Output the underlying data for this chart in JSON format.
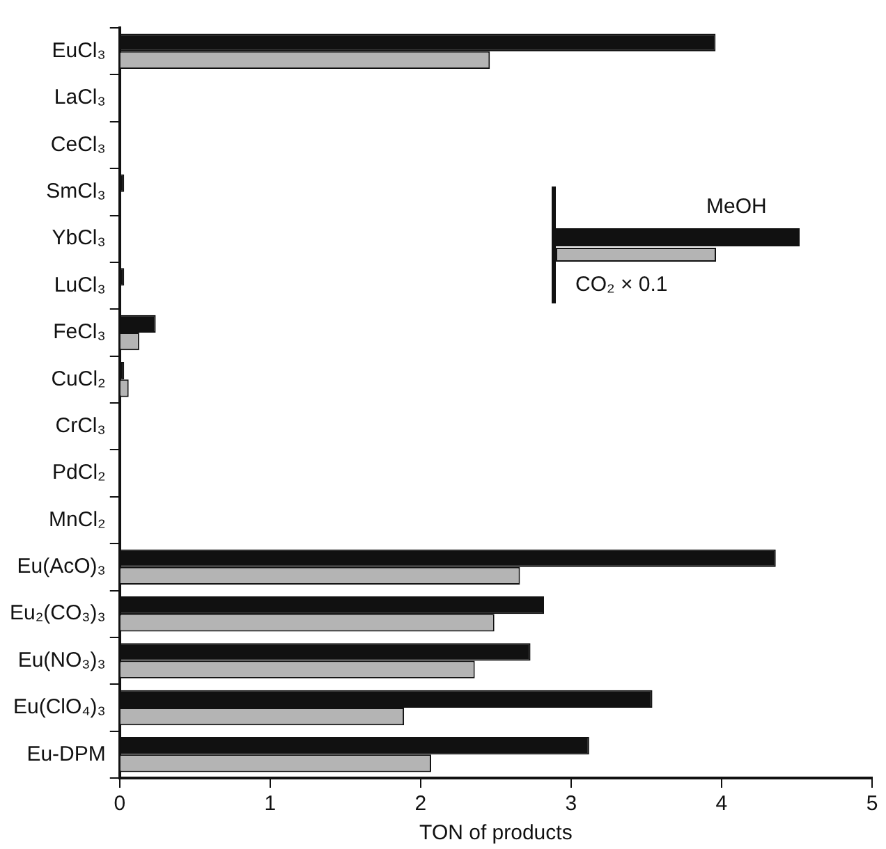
{
  "chart_data": {
    "type": "bar",
    "orientation": "horizontal",
    "xlabel": "TON of products",
    "categories": [
      "EuCl₃",
      "LaCl₃",
      "CeCl₃",
      "SmCl₃",
      "YbCl₃",
      "LuCl₃",
      "FeCl₃",
      "CuCl₂",
      "CrCl₃",
      "PdCl₂",
      "MnCl₂",
      "Eu(AcO)₃",
      "Eu₂(CO₃)₃",
      "Eu(NO₃)₃",
      "Eu(ClO₄)₃",
      "Eu-DPM"
    ],
    "series": [
      {
        "name": "MeOH",
        "color": "#111111",
        "values": [
          3.96,
          0,
          0,
          0.03,
          0,
          0.03,
          0.24,
          0.03,
          0,
          0,
          0,
          4.36,
          2.82,
          2.73,
          3.54,
          3.12
        ]
      },
      {
        "name": "CO₂ × 0.1",
        "color": "#b4b4b4",
        "values": [
          2.46,
          0,
          0,
          0,
          0,
          0,
          0.13,
          0.06,
          0,
          0,
          0,
          2.66,
          2.49,
          2.36,
          1.89,
          2.07
        ]
      }
    ],
    "xlim": [
      0,
      5
    ],
    "xticks": [
      0,
      1,
      2,
      3,
      4,
      5
    ],
    "grid": false,
    "legend": "right"
  }
}
